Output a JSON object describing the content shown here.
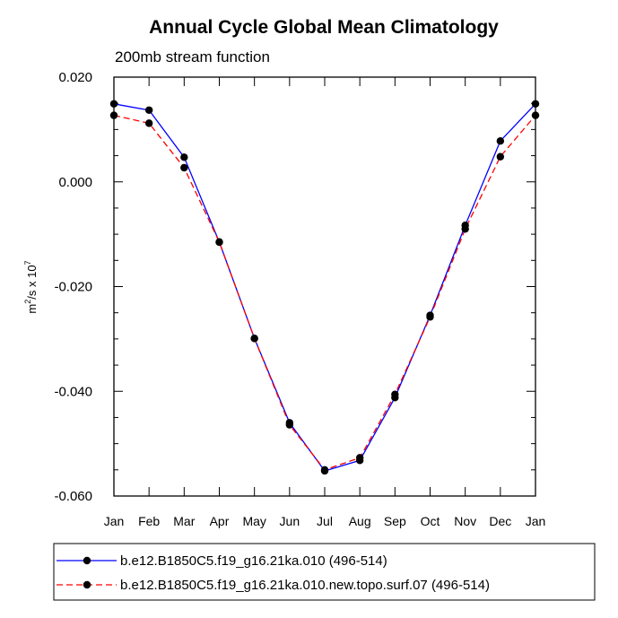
{
  "chart_data": {
    "type": "line",
    "title": "Annual Cycle Global Mean Climatology",
    "subtitle": "200mb stream function",
    "ylabel": "m²/s x 10⁷",
    "ylabel_parts": {
      "base": "m",
      "sup1": "2",
      "mid": "/s x 10",
      "sup2": "7"
    },
    "categories": [
      "Jan",
      "Feb",
      "Mar",
      "Apr",
      "May",
      "Jun",
      "Jul",
      "Aug",
      "Sep",
      "Oct",
      "Nov",
      "Dec",
      "Jan"
    ],
    "ylim": [
      -0.06,
      0.02
    ],
    "yticks": [
      -0.06,
      -0.04,
      -0.02,
      0.0,
      0.02
    ],
    "ytick_labels": [
      "-0.060",
      "-0.040",
      "-0.020",
      "0.000",
      "0.020"
    ],
    "grid": false,
    "legend_position": "bottom",
    "series": [
      {
        "name": "b.e12.B1850C5.f19_g16.21ka.010 (496-514)",
        "color": "#0000ff",
        "dash": "solid",
        "marker": "circle",
        "values": [
          0.0149,
          0.0137,
          0.0047,
          -0.0115,
          -0.0299,
          -0.046,
          -0.0552,
          -0.0532,
          -0.0412,
          -0.0255,
          -0.0083,
          0.0078,
          0.0149
        ]
      },
      {
        "name": "b.e12.B1850C5.f19_g16.21ka.010.new.topo.surf.07 (496-514)",
        "color": "#ff0000",
        "dash": "dashed",
        "marker": "circle",
        "values": [
          0.0127,
          0.0112,
          0.0027,
          -0.0115,
          -0.0299,
          -0.0464,
          -0.055,
          -0.0527,
          -0.0406,
          -0.0258,
          -0.009,
          0.0048,
          0.0127
        ]
      }
    ]
  }
}
